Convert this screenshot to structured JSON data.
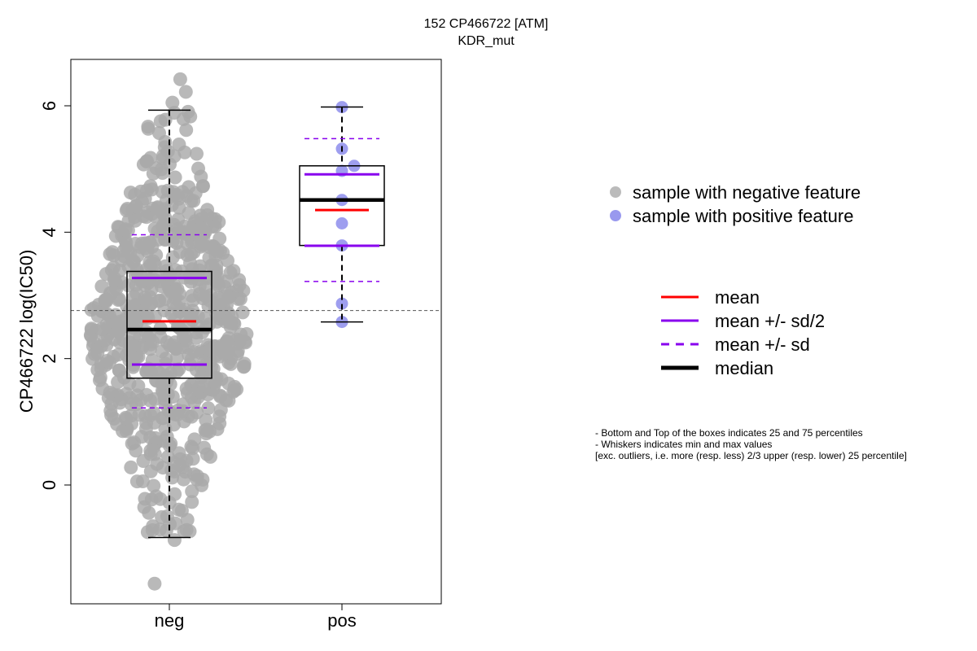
{
  "chart_data": {
    "type": "boxplot",
    "title": "152 CP466722 [ATM]",
    "subtitle": "KDR_mut",
    "ylabel": "CP466722 log(IC50)",
    "xlabel": "",
    "categories": [
      "neg",
      "pos"
    ],
    "ylim": [
      -1.9,
      6.7
    ],
    "yticks": [
      0,
      2,
      4,
      6
    ],
    "reference_line": 2.76,
    "grid": false,
    "groups": [
      {
        "name": "neg",
        "n_points": 700,
        "point_color": "#aaaaaa",
        "q1": 1.69,
        "median": 2.46,
        "q3": 3.38,
        "whisker_low": -0.83,
        "whisker_high": 5.93,
        "mean": 2.59,
        "sd": 1.37,
        "min": -1.56,
        "max": 6.42,
        "outliers_shown": [
          6.42,
          6.22,
          6.05,
          -0.87,
          -1.56
        ]
      },
      {
        "name": "pos",
        "n_points": 9,
        "point_color": "#9999ee",
        "q1": 3.79,
        "median": 4.51,
        "q3": 5.05,
        "whisker_low": 2.58,
        "whisker_high": 5.98,
        "mean": 4.35,
        "sd": 1.13,
        "values": [
          5.98,
          5.32,
          5.05,
          4.97,
          4.51,
          4.14,
          3.79,
          2.87,
          2.58
        ]
      }
    ],
    "legend_points": [
      {
        "label": "sample with negative feature",
        "color": "#bbbbbb"
      },
      {
        "label": "sample with positive feature",
        "color": "#9999ee"
      }
    ],
    "legend_lines": [
      {
        "label": "mean",
        "color": "#ff0000",
        "style": "solid"
      },
      {
        "label": "mean +/- sd/2",
        "color": "#8800ee",
        "style": "solid"
      },
      {
        "label": "mean +/- sd",
        "color": "#8800ee",
        "style": "dashed"
      },
      {
        "label": "median",
        "color": "#000000",
        "style": "thick"
      }
    ],
    "notes": [
      "- Bottom and Top of the boxes indicates 25 and 75 percentiles",
      "- Whiskers indicates min and max values",
      "[exc. outliers, i.e. more (resp. less) 2/3 upper (resp. lower) 25 percentile]"
    ]
  }
}
